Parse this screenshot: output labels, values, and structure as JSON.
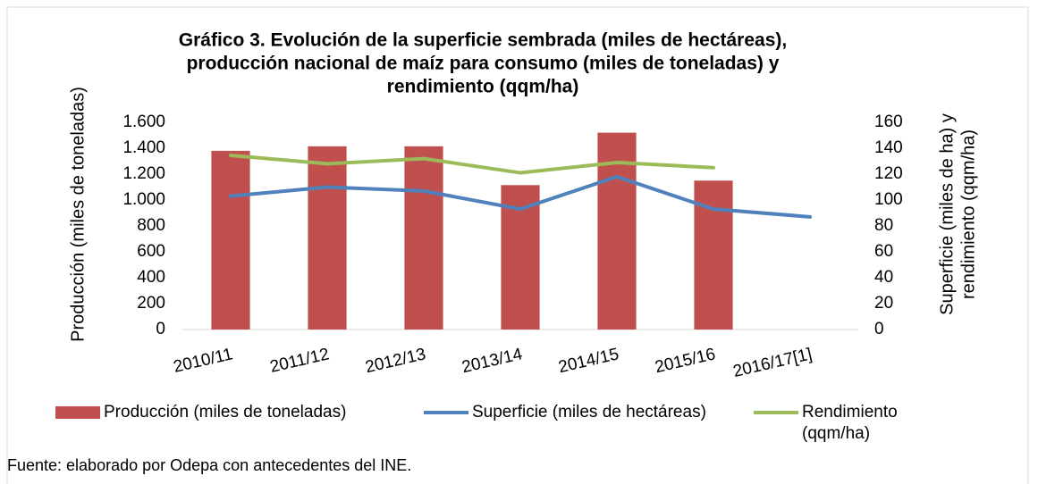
{
  "chart_data": {
    "type": "bar_line",
    "title": [
      "Gráfico 3. Evolución de la superficie sembrada (miles de hectáreas),",
      "producción nacional de maíz para consumo (miles de toneladas) y",
      "rendimiento (qqm/ha)"
    ],
    "ylabel": "Producción (miles de toneladas)",
    "y2label": [
      "Superficie (miles de ha) y",
      "rendimiento (qqm/ha)"
    ],
    "categories": [
      "2010/11",
      "2011/12",
      "2012/13",
      "2013/14",
      "2014/15",
      "2015/16",
      "2016/17[1]"
    ],
    "series": [
      {
        "name": "Producción (miles de toneladas)",
        "type": "bar",
        "color": "#c0504d",
        "values": [
          1380,
          1415,
          1415,
          1115,
          1520,
          1150,
          null
        ]
      },
      {
        "name": "Superficie (miles de hectáreas)",
        "type": "line",
        "axis": "y2",
        "color": "#4f81bd",
        "values": [
          103,
          110,
          107,
          93,
          118,
          93,
          87
        ]
      },
      {
        "name": "Rendimiento (qqm/ha)",
        "type": "line",
        "axis": "y2",
        "color": "#9bbb59",
        "values": [
          134.5,
          128,
          132,
          121,
          129,
          125,
          null
        ]
      }
    ],
    "ylim": [
      0,
      1600
    ],
    "yticks": [
      0,
      200,
      400,
      600,
      800,
      {
        "value": 1000,
        "label": "1.000"
      },
      {
        "value": 1200,
        "label": "1.200"
      },
      {
        "value": 1400,
        "label": "1.400"
      },
      {
        "value": 1600,
        "label": "1.600"
      }
    ],
    "y2lim": [
      0,
      160
    ],
    "y2ticks": [
      0,
      20,
      40,
      60,
      80,
      100,
      120,
      140,
      160
    ],
    "source": "Fuente: elaborado por Odepa con antecedentes del INE."
  }
}
